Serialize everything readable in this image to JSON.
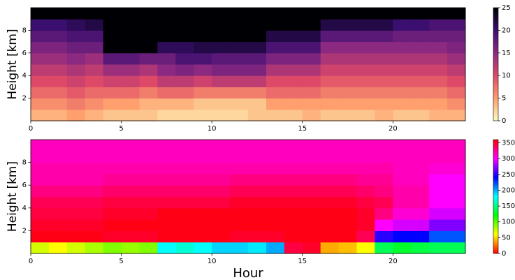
{
  "chart_data": [
    {
      "type": "heatmap",
      "ylabel": "Height [km]",
      "xlim": [
        0,
        24
      ],
      "ylim": [
        0,
        10
      ],
      "xticks": [
        0,
        5,
        10,
        15,
        20
      ],
      "yticks": [
        2,
        4,
        6,
        8
      ],
      "xbins": [
        0,
        1,
        2,
        3,
        4,
        5,
        6,
        7,
        8,
        9,
        10,
        11,
        12,
        13,
        14,
        15,
        16,
        17,
        18,
        19,
        20,
        21,
        22,
        23,
        24
      ],
      "ybins": [
        0,
        1,
        2,
        3,
        4,
        5,
        6,
        7,
        8,
        9,
        10
      ],
      "values": [
        [
          4,
          4,
          5,
          4,
          3,
          3,
          3,
          2,
          2,
          2,
          2,
          2,
          3,
          3,
          3,
          4,
          3,
          3,
          3,
          4,
          3,
          3,
          4,
          4
        ],
        [
          6,
          6,
          7,
          6,
          5,
          5,
          4,
          4,
          4,
          3,
          3,
          3,
          3,
          5,
          5,
          5,
          5,
          5,
          5,
          5,
          5,
          5,
          5,
          6
        ],
        [
          8,
          8,
          9,
          8,
          8,
          8,
          7,
          8,
          8,
          7,
          7,
          7,
          7,
          8,
          8,
          8,
          7,
          7,
          7,
          7,
          7,
          7,
          7,
          8
        ],
        [
          10,
          10,
          11,
          10,
          11,
          11,
          10,
          12,
          12,
          11,
          12,
          12,
          12,
          10,
          10,
          10,
          9,
          9,
          9,
          9,
          9,
          9,
          9,
          10
        ],
        [
          12,
          12,
          13,
          12,
          14,
          14,
          13,
          15,
          16,
          15,
          16,
          16,
          16,
          13,
          13,
          13,
          11,
          11,
          11,
          11,
          11,
          11,
          11,
          12
        ],
        [
          14,
          14,
          15,
          14,
          18,
          18,
          17,
          17,
          19,
          19,
          18,
          18,
          18,
          16,
          16,
          16,
          13,
          13,
          13,
          13,
          13,
          13,
          13,
          14
        ],
        [
          16,
          16,
          17,
          17,
          25,
          25,
          25,
          21,
          21,
          22,
          22,
          22,
          22,
          19,
          19,
          19,
          15,
          15,
          15,
          15,
          15,
          15,
          15,
          16
        ],
        [
          18,
          18,
          19,
          19,
          25,
          25,
          25,
          25,
          25,
          25,
          25,
          25,
          25,
          22,
          22,
          22,
          18,
          18,
          18,
          18,
          17,
          17,
          17,
          17
        ],
        [
          20,
          20,
          21,
          22,
          25,
          25,
          25,
          25,
          25,
          25,
          25,
          25,
          25,
          25,
          25,
          25,
          22,
          22,
          22,
          22,
          20,
          20,
          19,
          19
        ],
        [
          25,
          25,
          25,
          25,
          25,
          25,
          25,
          25,
          25,
          25,
          25,
          25,
          25,
          25,
          25,
          25,
          25,
          25,
          25,
          25,
          25,
          25,
          25,
          25
        ]
      ],
      "colorbar": {
        "lim": [
          0,
          25
        ],
        "ticks": [
          0,
          5,
          10,
          15,
          20,
          25
        ],
        "colormap": [
          "#fcfdbf",
          "#fe9f6d",
          "#de4968",
          "#8c2981",
          "#3b0f70",
          "#000004"
        ]
      }
    },
    {
      "type": "heatmap",
      "ylabel": "Height [km]",
      "xlabel": "Hour",
      "xlim": [
        0,
        24
      ],
      "ylim": [
        0,
        10
      ],
      "xticks": [
        0,
        5,
        10,
        15,
        20
      ],
      "yticks": [
        2,
        4,
        6,
        8
      ],
      "xbins": [
        0,
        1,
        2,
        3,
        4,
        5,
        6,
        7,
        8,
        9,
        10,
        11,
        12,
        13,
        14,
        15,
        16,
        17,
        18,
        19,
        20,
        21,
        22,
        23,
        24
      ],
      "ybins": [
        0,
        1,
        2,
        3,
        4,
        5,
        6,
        7,
        8,
        9,
        10
      ],
      "values": [
        [
          70,
          60,
          70,
          80,
          90,
          85,
          90,
          180,
          170,
          180,
          190,
          190,
          185,
          200,
          345,
          350,
          40,
          45,
          60,
          140,
          130,
          135,
          140,
          140
        ],
        [
          355,
          355,
          355,
          355,
          350,
          350,
          350,
          355,
          355,
          355,
          355,
          350,
          350,
          350,
          355,
          355,
          355,
          355,
          340,
          250,
          240,
          240,
          220,
          220
        ],
        [
          350,
          350,
          350,
          350,
          355,
          355,
          355,
          355,
          355,
          355,
          355,
          355,
          355,
          355,
          355,
          355,
          355,
          355,
          350,
          300,
          290,
          290,
          270,
          270
        ],
        [
          345,
          345,
          345,
          345,
          350,
          350,
          350,
          355,
          355,
          355,
          355,
          355,
          355,
          355,
          355,
          355,
          355,
          355,
          350,
          330,
          310,
          310,
          290,
          290
        ],
        [
          340,
          340,
          340,
          340,
          345,
          345,
          345,
          345,
          345,
          345,
          345,
          350,
          350,
          350,
          350,
          350,
          350,
          350,
          345,
          340,
          320,
          320,
          300,
          300
        ],
        [
          330,
          330,
          330,
          330,
          335,
          335,
          335,
          335,
          335,
          335,
          335,
          340,
          340,
          340,
          340,
          340,
          340,
          340,
          335,
          330,
          320,
          320,
          300,
          300
        ],
        [
          320,
          320,
          320,
          320,
          325,
          325,
          325,
          325,
          325,
          325,
          325,
          330,
          330,
          330,
          330,
          330,
          330,
          330,
          325,
          325,
          315,
          315,
          300,
          300
        ],
        [
          320,
          320,
          320,
          320,
          320,
          320,
          320,
          320,
          320,
          320,
          320,
          320,
          320,
          320,
          320,
          320,
          320,
          320,
          320,
          320,
          315,
          315,
          310,
          310
        ],
        [
          315,
          315,
          315,
          315,
          315,
          315,
          315,
          315,
          315,
          315,
          315,
          315,
          315,
          315,
          315,
          315,
          315,
          315,
          315,
          315,
          315,
          315,
          315,
          315
        ],
        [
          315,
          315,
          315,
          315,
          315,
          315,
          315,
          315,
          315,
          315,
          315,
          315,
          315,
          315,
          315,
          315,
          315,
          315,
          315,
          315,
          315,
          315,
          315,
          315
        ]
      ],
      "colorbar": {
        "lim": [
          0,
          360
        ],
        "ticks": [
          0,
          50,
          100,
          150,
          200,
          250,
          300,
          350
        ],
        "colormap": [
          "#ff0000",
          "#ffff00",
          "#00ff00",
          "#00ffff",
          "#0000ff",
          "#ff00ff",
          "#ff0000"
        ]
      }
    }
  ]
}
